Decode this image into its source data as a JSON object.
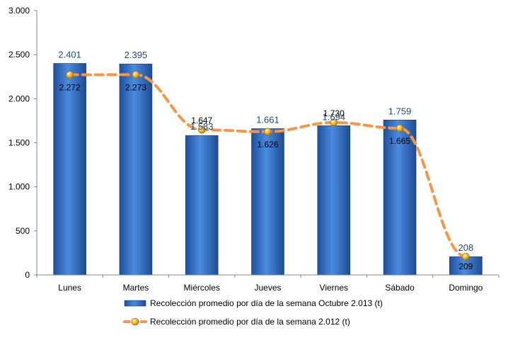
{
  "chart_data": {
    "type": "bar",
    "categories": [
      "Lunes",
      "Martes",
      "Miércoles",
      "Jueves",
      "Viernes",
      "Sábado",
      "Domingo"
    ],
    "series": [
      {
        "name": "Recolección promedio por día de la semana Octubre 2.013 (t)",
        "kind": "bar",
        "values": [
          2401,
          2395,
          1583,
          1661,
          1694,
          1759,
          208
        ],
        "labels": [
          "2.401",
          "2.395",
          "1.583",
          "1.661",
          "1.694",
          "1.759",
          "208"
        ],
        "color": "#2E6FC7"
      },
      {
        "name": "Recolección promedio por día de la semana 2.012 (t)",
        "kind": "line",
        "style": "dashed",
        "values": [
          2272,
          2273,
          1647,
          1626,
          1730,
          1665,
          209
        ],
        "labels": [
          "2.272",
          "2.273",
          "1.647",
          "1.626",
          "1.730",
          "1.665",
          "209"
        ],
        "color": "#F79646",
        "marker_color": "#E8B020"
      }
    ],
    "ylim": [
      0,
      3000
    ],
    "yticks": [
      0,
      500,
      1000,
      1500,
      2000,
      2500,
      3000
    ],
    "ytick_labels": [
      "0",
      "500",
      "1.000",
      "1.500",
      "2.000",
      "2.500",
      "3.000"
    ],
    "grid": false,
    "legend_position": "bottom"
  }
}
